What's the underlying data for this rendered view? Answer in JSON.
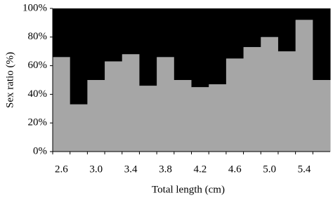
{
  "chart_data": {
    "type": "bar",
    "stacked": true,
    "x_label": "Total length (cm)",
    "y_label": "Sex ratio (%)",
    "categories": [
      "2.6",
      null,
      "3.0",
      null,
      "3.4",
      null,
      "3.8",
      null,
      "4.2",
      null,
      "4.6",
      null,
      "5.0",
      null,
      "5.4",
      null
    ],
    "series": [
      {
        "color": "#a6a6a6",
        "values": [
          66,
          33,
          50,
          63,
          68,
          46,
          66,
          50,
          45,
          47,
          65,
          73,
          80,
          70,
          92,
          50
        ]
      },
      {
        "color": "#000000",
        "values": [
          34,
          67,
          50,
          37,
          32,
          54,
          34,
          50,
          55,
          53,
          35,
          27,
          20,
          30,
          8,
          50
        ]
      }
    ],
    "ylim": [
      0,
      100
    ],
    "yticks": [
      {
        "value": 0,
        "label": "0%"
      },
      {
        "value": 20,
        "label": "20%"
      },
      {
        "value": 40,
        "label": "40%"
      },
      {
        "value": 60,
        "label": "60%"
      },
      {
        "value": 80,
        "label": "80%"
      },
      {
        "value": 100,
        "label": "100%"
      }
    ]
  }
}
